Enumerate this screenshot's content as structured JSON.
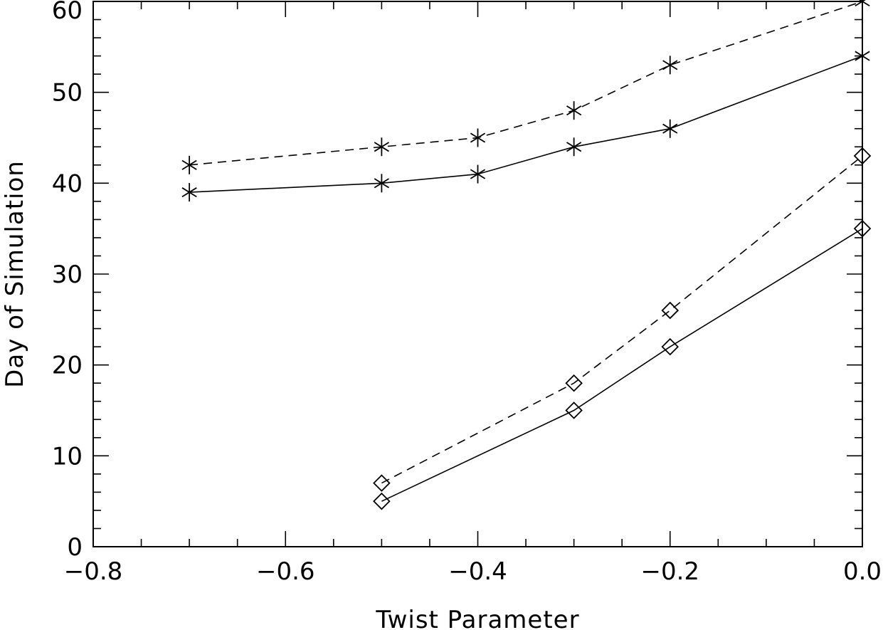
{
  "chart_data": {
    "type": "line",
    "title": "",
    "xlabel": "Twist Parameter",
    "ylabel": "Day of Simulation",
    "xlim": [
      -0.8,
      0.0
    ],
    "ylim": [
      0,
      60
    ],
    "x_ticks": [
      -0.8,
      -0.6,
      -0.4,
      -0.2,
      0.0
    ],
    "x_tick_labels": [
      "−0.8",
      "−0.6",
      "−0.4",
      "−0.2",
      "0.0"
    ],
    "x_minor_step": 0.05,
    "y_ticks": [
      0,
      10,
      20,
      30,
      40,
      50,
      60
    ],
    "y_tick_labels": [
      "0",
      "10",
      "20",
      "30",
      "40",
      "50",
      "60"
    ],
    "y_minor_step": 2,
    "grid": false,
    "legend": "none",
    "series": [
      {
        "marker": "asterisk",
        "line": "dashed",
        "x": [
          -0.7,
          -0.5,
          -0.4,
          -0.3,
          -0.2,
          0.0
        ],
        "y": [
          42,
          44,
          45,
          48,
          53,
          60
        ]
      },
      {
        "marker": "asterisk",
        "line": "solid",
        "x": [
          -0.7,
          -0.5,
          -0.4,
          -0.3,
          -0.2,
          0.0
        ],
        "y": [
          39,
          40,
          41,
          44,
          46,
          54
        ]
      },
      {
        "marker": "diamond",
        "line": "dashed",
        "x": [
          -0.5,
          -0.3,
          -0.2,
          0.0
        ],
        "y": [
          7,
          18,
          26,
          43
        ]
      },
      {
        "marker": "diamond",
        "line": "solid",
        "x": [
          -0.5,
          -0.3,
          -0.2,
          0.0
        ],
        "y": [
          5,
          15,
          22,
          35
        ]
      }
    ]
  }
}
